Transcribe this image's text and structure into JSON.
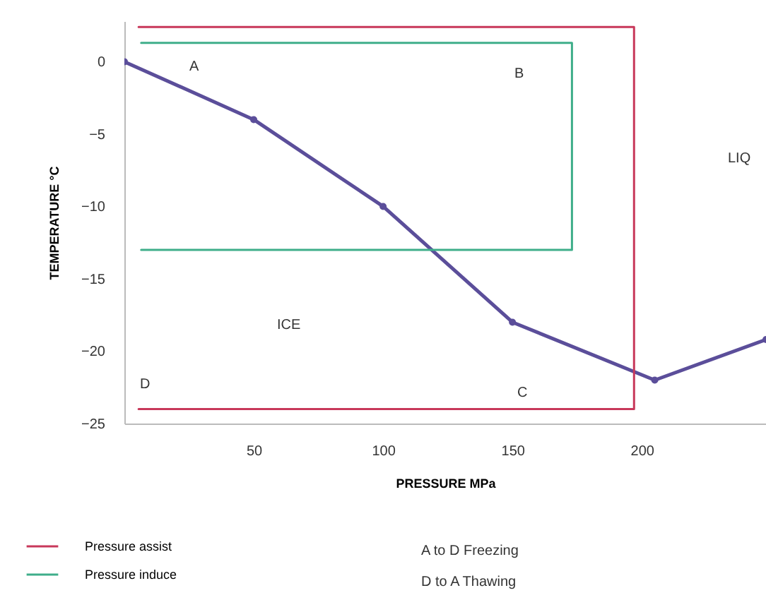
{
  "chart_data": {
    "type": "line",
    "xlabel": "PRESSURE MPa",
    "ylabel": "TEMPERATURE °C",
    "xlim": [
      0,
      248
    ],
    "xticks": [
      50,
      100,
      150,
      200
    ],
    "ylim": [
      -25,
      2.8
    ],
    "yticks": [
      0,
      -5,
      -10,
      -15,
      -20,
      -25
    ],
    "grid": false,
    "legend": "bottom left",
    "series": [
      {
        "color": "#5b4e9a",
        "marker": "circle",
        "x": [
          0,
          50,
          100,
          150,
          205,
          248
        ],
        "values": [
          0,
          -4,
          -10,
          -18,
          -22,
          -19.2
        ]
      },
      {
        "name": "Pressure assist",
        "color": "#c8385a",
        "marker": "none",
        "x": [
          5.5,
          197,
          197,
          5.5
        ],
        "values": [
          2.4,
          2.4,
          -24,
          -24
        ]
      },
      {
        "name": "Pressure induce",
        "color": "#3fae8a",
        "marker": "none",
        "x": [
          6.5,
          173,
          173,
          6.5
        ],
        "values": [
          1.3,
          1.3,
          -13,
          -13
        ]
      }
    ],
    "annotations": [
      "A",
      "B",
      "C",
      "D",
      "ICE",
      "LIQ",
      "A to D Freezing",
      "D to A Thawing"
    ]
  }
}
